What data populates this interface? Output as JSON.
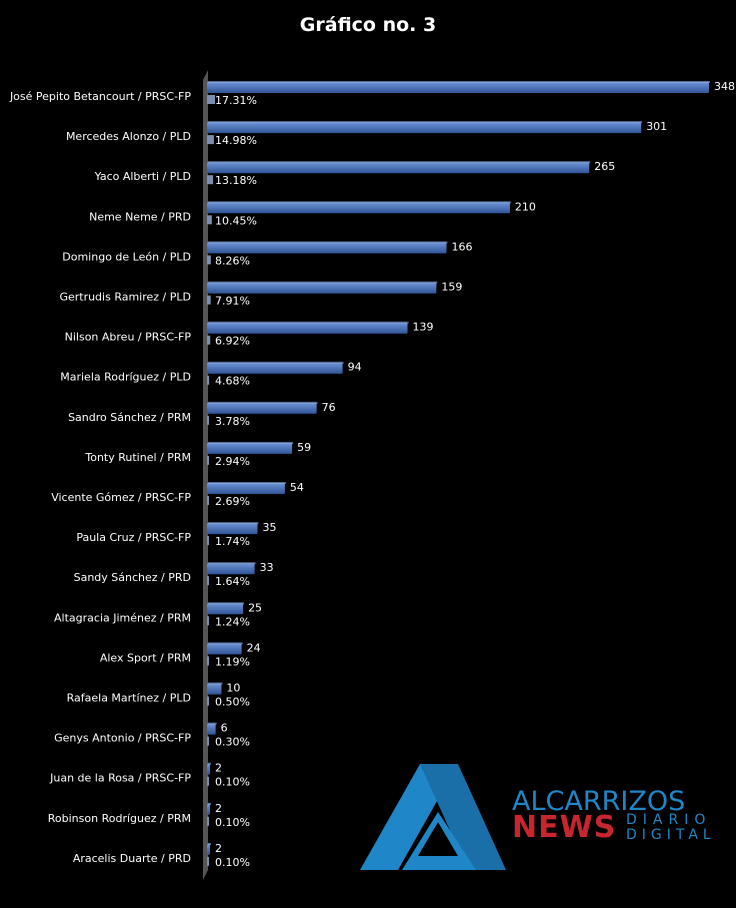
{
  "chart_data": {
    "type": "bar",
    "orientation": "horizontal",
    "title": "Gráfico no. 3",
    "categories": [
      "José Pepito Betancourt / PRSC-FP",
      "Mercedes Alonzo / PLD",
      "Yaco Alberti / PLD",
      "Neme Neme / PRD",
      "Domingo de León / PLD",
      "Gertrudis Ramirez / PLD",
      "Nilson Abreu / PRSC-FP",
      "Mariela Rodríguez / PLD",
      "Sandro Sánchez / PRM",
      "Tonty Rutinel / PRM",
      "Vicente Gómez / PRSC-FP",
      "Paula Cruz / PRSC-FP",
      "Sandy Sánchez / PRD",
      "Altagracia Jiménez / PRM",
      "Alex Sport / PRM",
      "Rafaela Martínez / PLD",
      "Genys Antonio / PRSC-FP",
      "Juan de la Rosa / PRSC-FP",
      "Robinson Rodríguez / PRM",
      "Aracelis Duarte / PRD"
    ],
    "values": [
      348,
      301,
      265,
      210,
      166,
      159,
      139,
      94,
      76,
      59,
      54,
      35,
      33,
      25,
      24,
      10,
      6,
      2,
      2,
      2
    ],
    "percent_labels": [
      "17.31%",
      "14.98%",
      "13.18%",
      "10.45%",
      "8.26%",
      "7.91%",
      "6.92%",
      "4.68%",
      "3.78%",
      "2.94%",
      "2.69%",
      "1.74%",
      "1.64%",
      "1.24%",
      "1.19%",
      "0.50%",
      "0.30%",
      "0.10%",
      "0.10%",
      "0.10%"
    ],
    "percent_values": [
      17.31,
      14.98,
      13.18,
      10.45,
      8.26,
      7.91,
      6.92,
      4.68,
      3.78,
      2.94,
      2.69,
      1.74,
      1.64,
      1.24,
      1.19,
      0.5,
      0.3,
      0.1,
      0.1,
      0.1
    ],
    "xlim": [
      0,
      348
    ],
    "grid": false,
    "legend": "none",
    "colors": {
      "bar": "#4472c4",
      "bar_light": "#6f95d8",
      "pct_bar": "#7a8fb3",
      "axis": "#7f7f7f",
      "background": "#000000",
      "text": "#ffffff"
    }
  },
  "watermark": {
    "line1": "ALCARRIZOS",
    "line2": "NEWS",
    "line3a": "DIARIO",
    "line3b": "DIGITAL",
    "colors": {
      "blue": "#1f86c7",
      "red": "#c8262f"
    }
  }
}
